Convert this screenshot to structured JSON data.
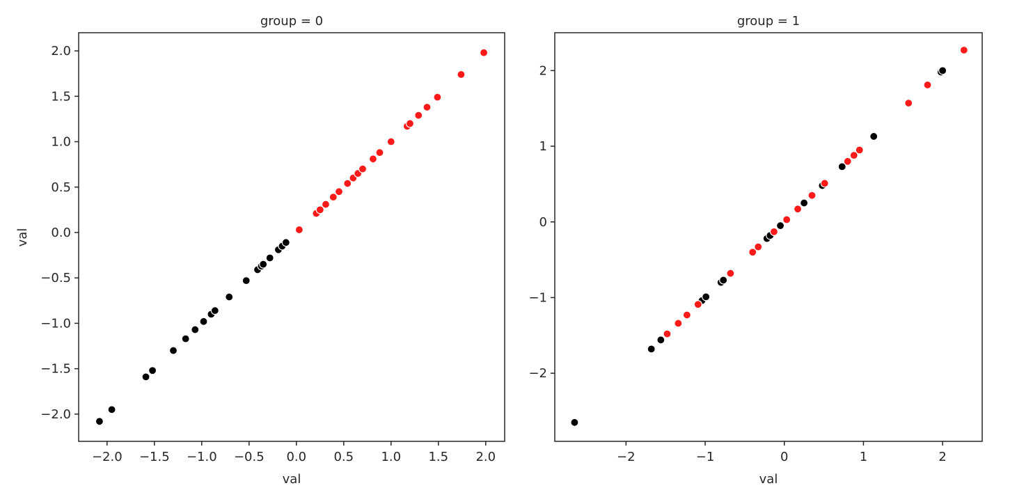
{
  "chart_data": [
    {
      "type": "scatter",
      "title": "group = 0",
      "xlabel": "val",
      "ylabel": "val",
      "xlim": [
        -2.3,
        2.2
      ],
      "ylim": [
        -2.3,
        2.2
      ],
      "xticks": [
        -2.0,
        -1.5,
        -1.0,
        -0.5,
        0.0,
        0.5,
        1.0,
        1.5,
        2.0
      ],
      "xtick_labels": [
        "−2.0",
        "−1.5",
        "−1.0",
        "−0.5",
        "0.0",
        "0.5",
        "1.0",
        "1.5",
        "2.0"
      ],
      "yticks": [
        -2.0,
        -1.5,
        -1.0,
        -0.5,
        0.0,
        0.5,
        1.0,
        1.5,
        2.0
      ],
      "ytick_labels": [
        "−2.0",
        "−1.5",
        "−1.0",
        "−0.5",
        "0.0",
        "0.5",
        "1.0",
        "1.5",
        "2.0"
      ],
      "series": [
        {
          "color": "#000000",
          "x": [
            -2.08,
            -1.95,
            -1.59,
            -1.52,
            -1.3,
            -1.17,
            -1.07,
            -0.98,
            -0.9,
            -0.86,
            -0.71,
            -0.53,
            -0.41,
            -0.37,
            -0.35,
            -0.28,
            -0.19,
            -0.15,
            -0.11
          ],
          "y": [
            -2.08,
            -1.95,
            -1.59,
            -1.52,
            -1.3,
            -1.17,
            -1.07,
            -0.98,
            -0.9,
            -0.86,
            -0.71,
            -0.53,
            -0.41,
            -0.37,
            -0.35,
            -0.28,
            -0.19,
            -0.15,
            -0.11
          ]
        },
        {
          "color": "#ff1a1a",
          "x": [
            0.03,
            0.21,
            0.25,
            0.31,
            0.39,
            0.45,
            0.54,
            0.6,
            0.65,
            0.7,
            0.81,
            0.88,
            1.0,
            1.17,
            1.2,
            1.29,
            1.38,
            1.49,
            1.74,
            1.98
          ],
          "y": [
            0.03,
            0.21,
            0.25,
            0.31,
            0.39,
            0.45,
            0.54,
            0.6,
            0.65,
            0.7,
            0.81,
            0.88,
            1.0,
            1.17,
            1.2,
            1.29,
            1.38,
            1.49,
            1.74,
            1.98
          ]
        }
      ]
    },
    {
      "type": "scatter",
      "title": "group = 1",
      "xlabel": "val",
      "ylabel": "",
      "xlim": [
        -2.9,
        2.5
      ],
      "ylim": [
        -2.9,
        2.5
      ],
      "xticks": [
        -2,
        -1,
        0,
        1,
        2
      ],
      "xtick_labels": [
        "−2",
        "−1",
        "0",
        "1",
        "2"
      ],
      "yticks": [
        -2,
        -1,
        0,
        1,
        2
      ],
      "ytick_labels": [
        "−2",
        "−1",
        "0",
        "1",
        "2"
      ],
      "series": [
        {
          "color": "#000000",
          "x": [
            -2.65,
            -1.68,
            -1.56,
            -1.04,
            -0.99,
            -0.8,
            -0.77,
            -0.22,
            -0.18,
            -0.05,
            0.25,
            0.48,
            0.73,
            1.13,
            1.98,
            2.0
          ],
          "y": [
            -2.65,
            -1.68,
            -1.56,
            -1.04,
            -0.99,
            -0.8,
            -0.77,
            -0.22,
            -0.18,
            -0.05,
            0.25,
            0.48,
            0.73,
            1.13,
            1.98,
            2.0
          ]
        },
        {
          "color": "#ff1a1a",
          "x": [
            -1.48,
            -1.34,
            -1.23,
            -1.09,
            -0.68,
            -0.4,
            -0.33,
            -0.13,
            0.03,
            0.17,
            0.35,
            0.51,
            0.8,
            0.88,
            0.95,
            1.57,
            1.81,
            2.27
          ],
          "y": [
            -1.48,
            -1.34,
            -1.23,
            -1.09,
            -0.68,
            -0.4,
            -0.33,
            -0.13,
            0.03,
            0.17,
            0.35,
            0.51,
            0.8,
            0.88,
            0.95,
            1.57,
            1.81,
            2.27
          ]
        }
      ]
    }
  ]
}
